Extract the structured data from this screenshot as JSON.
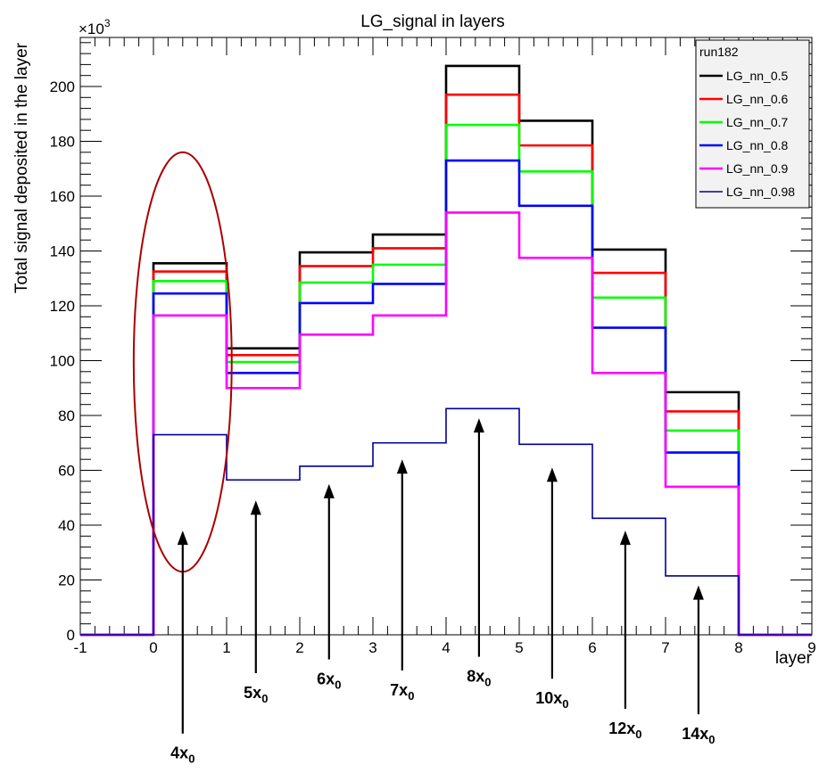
{
  "chart_data": {
    "type": "line",
    "title": "LG_signal in layers",
    "xlabel": "layer",
    "ylabel": "Total signal deposited in the layer",
    "y_multiplier_label": "×10",
    "y_multiplier_exp": "3",
    "xlim": [
      -1,
      9
    ],
    "ylim": [
      0,
      220
    ],
    "x_ticks": [
      "-1",
      "0",
      "1",
      "2",
      "3",
      "4",
      "5",
      "6",
      "7",
      "8",
      "9"
    ],
    "y_ticks": [
      "0",
      "20",
      "40",
      "60",
      "80",
      "100",
      "120",
      "140",
      "160",
      "180",
      "200"
    ],
    "bin_edges": [
      -1,
      0,
      1,
      2,
      3,
      4,
      5,
      6,
      7,
      8,
      9
    ],
    "legend": {
      "title": "run182",
      "placement": "top-right"
    },
    "series": [
      {
        "name": "LG_nn_0.5",
        "color": "#000000",
        "values": [
          0,
          135.5,
          104.5,
          139.5,
          146,
          207.5,
          187.5,
          140.5,
          88.5,
          0
        ]
      },
      {
        "name": "LG_nn_0.6",
        "color": "#ff0000",
        "values": [
          0,
          132.5,
          102,
          134.5,
          141,
          197,
          178.5,
          132,
          81.5,
          0
        ]
      },
      {
        "name": "LG_nn_0.7",
        "color": "#00ff00",
        "values": [
          0,
          129,
          99.5,
          128.5,
          135,
          186,
          169,
          123,
          74.5,
          0
        ]
      },
      {
        "name": "LG_nn_0.8",
        "color": "#0000ff",
        "values": [
          0,
          124.5,
          95.5,
          121,
          128,
          173,
          156.5,
          112,
          66.5,
          0
        ]
      },
      {
        "name": "LG_nn_0.9",
        "color": "#ff00ff",
        "values": [
          0,
          116.5,
          90,
          109.5,
          116.5,
          154,
          137.5,
          95.5,
          54,
          0
        ]
      },
      {
        "name": "LG_nn_0.98",
        "color": "#000099",
        "values": [
          0,
          73,
          56.5,
          61.5,
          70,
          82.5,
          69.5,
          42.5,
          21.5,
          0
        ]
      }
    ],
    "annotations": {
      "ellipse": {
        "cx": 0.4,
        "cy": 99.5,
        "rx": 0.67,
        "ry": 76.5,
        "color": "#aa0000"
      },
      "arrows": [
        {
          "label": "4x",
          "sub": "0",
          "x": 0.4,
          "y_tip": 38,
          "y_tail": -36
        },
        {
          "label": "5x",
          "sub": "0",
          "x": 1.4,
          "y_tip": 49,
          "y_tail": -14
        },
        {
          "label": "6x",
          "sub": "0",
          "x": 2.4,
          "y_tip": 55,
          "y_tail": -9
        },
        {
          "label": "7x",
          "sub": "0",
          "x": 3.4,
          "y_tip": 64,
          "y_tail": -13
        },
        {
          "label": "8x",
          "sub": "0",
          "x": 4.45,
          "y_tip": 79,
          "y_tail": -8
        },
        {
          "label": "10x",
          "sub": "0",
          "x": 5.45,
          "y_tip": 61,
          "y_tail": -16
        },
        {
          "label": "12x",
          "sub": "0",
          "x": 6.45,
          "y_tip": 38,
          "y_tail": -27
        },
        {
          "label": "14x",
          "sub": "0",
          "x": 7.45,
          "y_tip": 18,
          "y_tail": -29
        }
      ],
      "arrow_label_positions_note": ""
    }
  }
}
